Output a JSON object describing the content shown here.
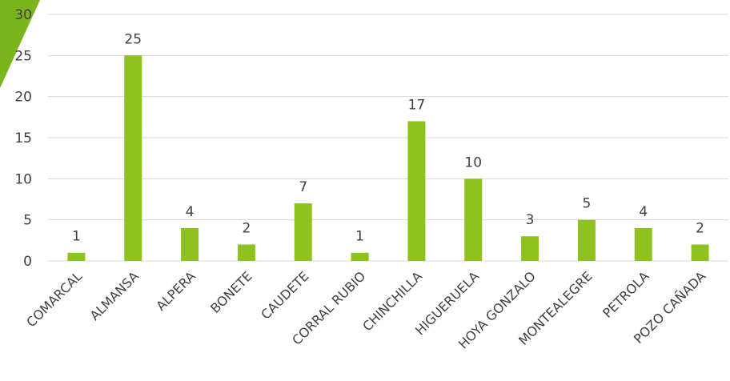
{
  "chart_data": {
    "type": "bar",
    "categories": [
      "COMARCAL",
      "ALMANSA",
      "ALPERA",
      "BONETE",
      "CAUDETE",
      "CORRAL RUBIO",
      "CHINCHILLA",
      "HIGUERUELA",
      "HOYA GONZALO",
      "MONTEALEGRE",
      "PETROLA",
      "POZO CAÑADA"
    ],
    "values": [
      1,
      25,
      4,
      2,
      7,
      1,
      17,
      10,
      3,
      5,
      4,
      2
    ],
    "ylim": [
      0,
      30
    ],
    "yticks": [
      0,
      5,
      10,
      15,
      20,
      25,
      30
    ],
    "grid": true,
    "data_labels": true,
    "colors": {
      "bar": "#8dc21f",
      "grid": "#d9d9d9",
      "accent_shape": "#7ab51d"
    }
  }
}
